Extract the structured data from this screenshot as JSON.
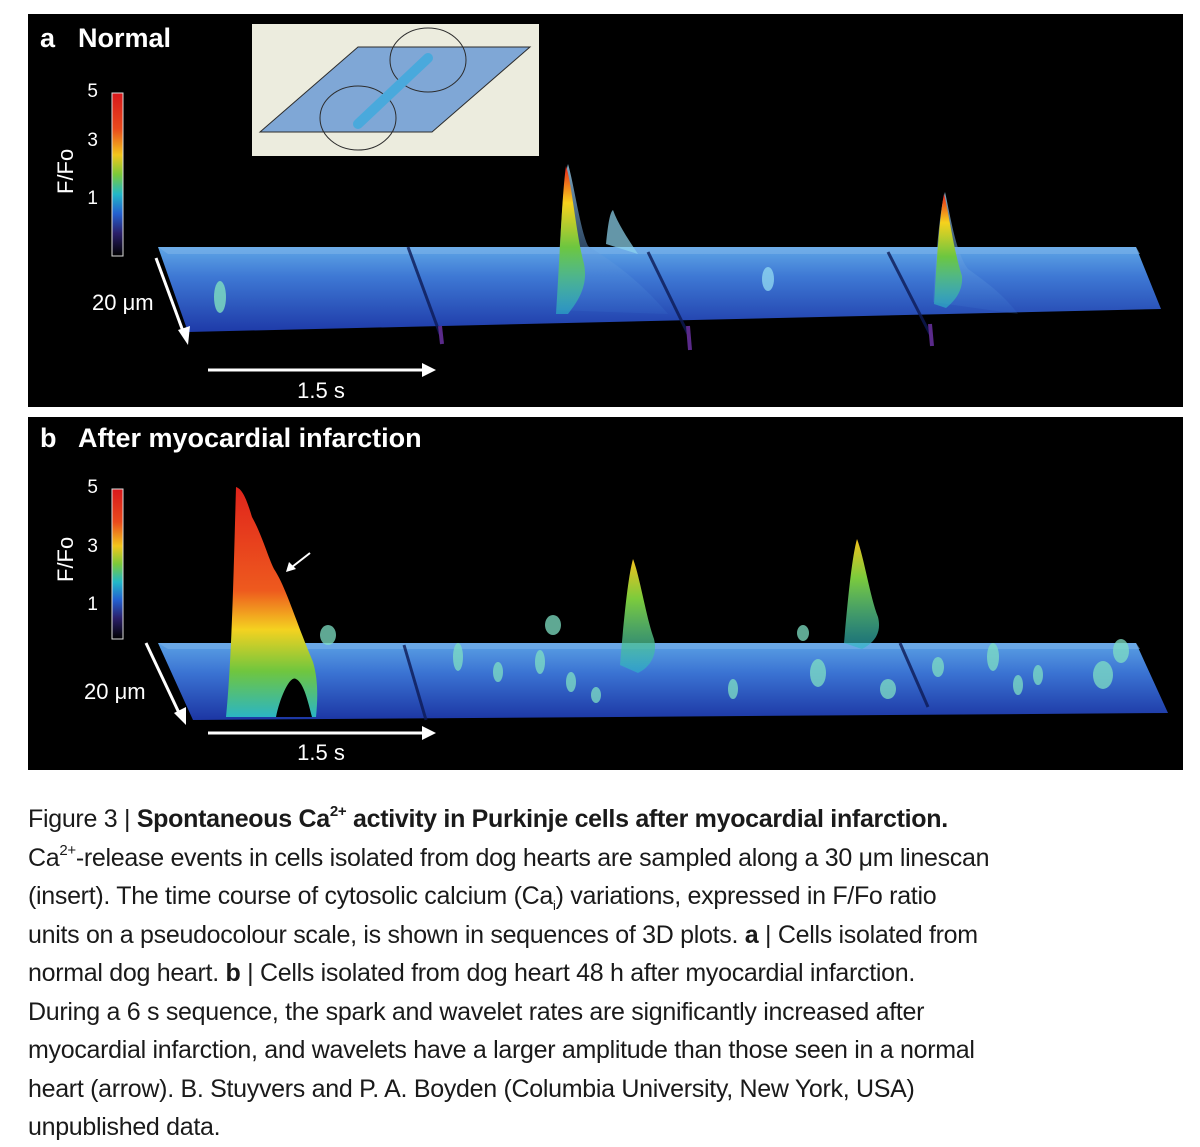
{
  "panel_a": {
    "letter": "a",
    "title": "Normal",
    "colorbar": {
      "axis_label": "F/Fo",
      "ticks": [
        "5",
        "3",
        "1"
      ]
    },
    "spatial_scale": "20 μm",
    "time_scale": "1.5 s"
  },
  "panel_b": {
    "letter": "b",
    "title": "After myocardial infarction",
    "colorbar": {
      "axis_label": "F/Fo",
      "ticks": [
        "5",
        "3",
        "1"
      ]
    },
    "spatial_scale": "20 μm",
    "time_scale": "1.5 s"
  },
  "caption": {
    "figure_label": "Figure 3 |",
    "title_pre": "Spontaneous Ca",
    "title_sup": "2+",
    "title_post": " activity in Purkinje cells after myocardial infarction.",
    "l2_pre": "Ca",
    "l2_sup": "2+",
    "l2_post": "-release events in cells isolated from dog hearts are sampled along a 30 μm linescan",
    "l3_pre": "(insert). The time course of cytosolic calcium (Ca",
    "l3_sub": "i",
    "l3_post": ") variations, expressed in F/Fo ratio",
    "l4_pre": "units on a pseudocolour scale, is shown in sequences of 3D plots. ",
    "l4_bold": "a",
    "l4_post": " | Cells isolated from",
    "l5_pre": "normal dog heart. ",
    "l5_bold": "b",
    "l5_post": " | Cells isolated from dog heart 48 h after myocardial infarction.",
    "l6": "During a 6 s sequence, the spark and wavelet rates are significantly increased after",
    "l7": "myocardial infarction, and wavelets have a larger amplitude than those seen in a normal",
    "l8": "heart (arrow). B. Stuyvers and P. A. Boyden (Columbia University, New York, USA)",
    "l9": "unpublished data."
  },
  "colors": {
    "panel_background": "#000000",
    "caption_text": "#1a1a1a",
    "surface_base": "#1f3fb0",
    "peak_red": "#e8201a",
    "insert_background": "#ececde",
    "insert_plane": "#7fa7d6",
    "insert_cell_line": "#49a9dc"
  }
}
